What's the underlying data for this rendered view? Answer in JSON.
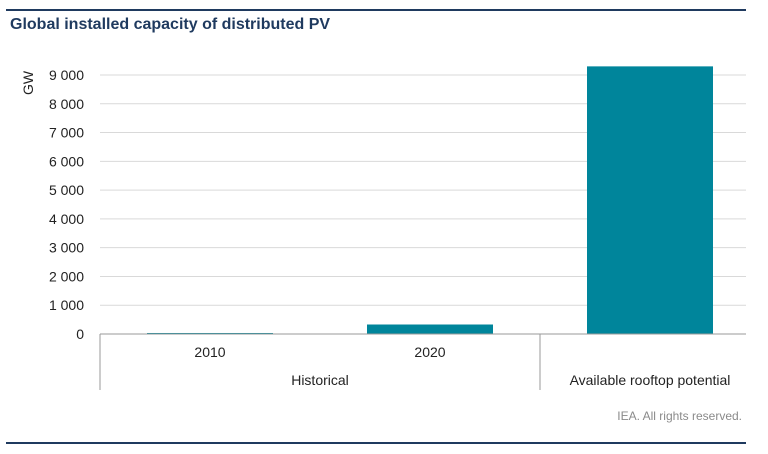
{
  "title": "Global installed capacity of distributed PV",
  "source": "IEA. All rights reserved.",
  "colors": {
    "bar": "#00859b",
    "grid": "#d9d9d9",
    "axis": "#9a9a9a",
    "title": "#1f3a5f"
  },
  "chart_data": {
    "type": "bar",
    "title": "Global installed capacity of distributed PV",
    "ylabel": "GW",
    "ylim": [
      0,
      9000
    ],
    "yticks": [
      0,
      1000,
      2000,
      3000,
      4000,
      5000,
      6000,
      7000,
      8000,
      9000
    ],
    "ytick_labels": [
      "0",
      "1 000",
      "2 000",
      "3 000",
      "4 000",
      "5 000",
      "6 000",
      "7 000",
      "8 000",
      "9 000"
    ],
    "categories": [
      "2010",
      "2020",
      ""
    ],
    "groups": [
      {
        "label": "Historical",
        "categories": [
          "2010",
          "2020"
        ]
      },
      {
        "label": "Available rooftop potential",
        "categories": [
          ""
        ]
      }
    ],
    "values": [
      35,
      330,
      9300
    ],
    "grid": true,
    "legend": "none"
  }
}
